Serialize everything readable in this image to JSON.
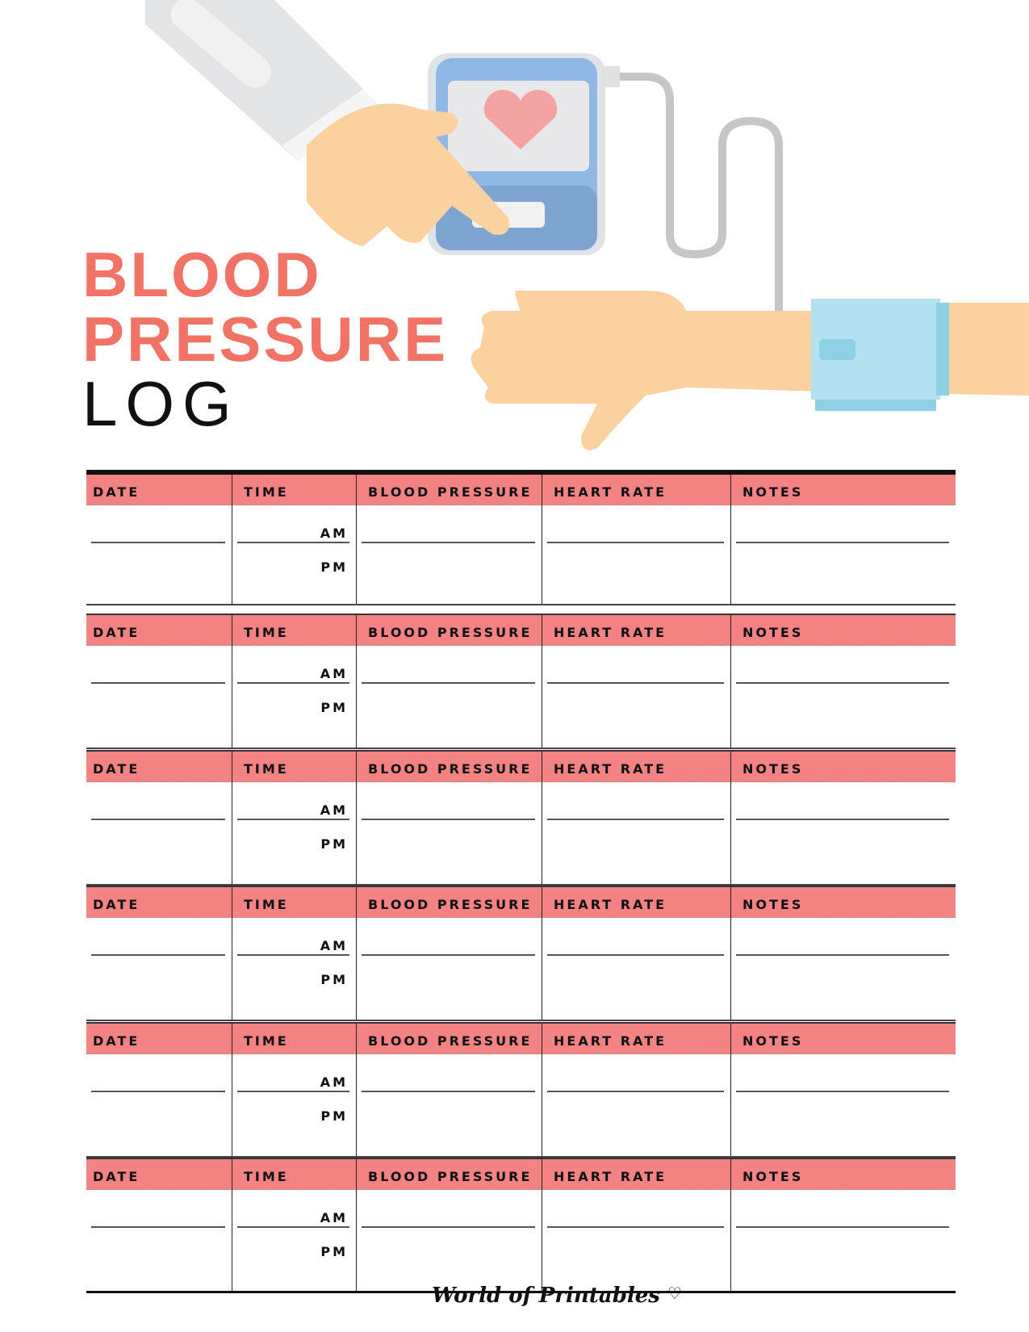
{
  "title": {
    "line1": "BLOOD",
    "line2": "PRESSURE",
    "line3": "LOG"
  },
  "columns": [
    "DATE",
    "TIME",
    "BLOOD PRESSURE",
    "HEART RATE",
    "NOTES"
  ],
  "time_labels": {
    "am": "AM",
    "pm": "PM"
  },
  "block_count": 6,
  "footer": {
    "brand": "World of Printables",
    "icon": "heart-outline-icon"
  },
  "colors": {
    "accent": "#f07366",
    "header": "#f38383"
  }
}
